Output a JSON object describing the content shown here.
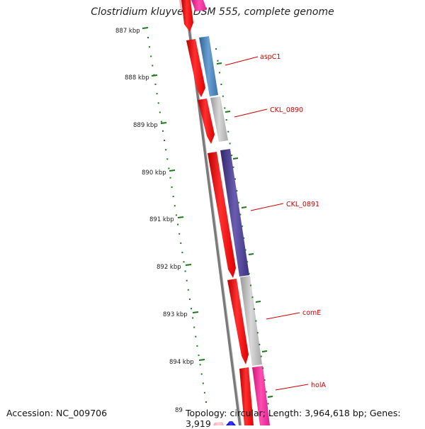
{
  "title": "Clostridium kluyveri DSM 555, complete genome",
  "footer": {
    "accession": "Accession: NC_009706",
    "summary": "Topology: circular; Length: 3,964,618 bp; Genes: 3,919"
  },
  "scale_labels": [
    "887 kbp",
    "888 kbp",
    "889 kbp",
    "890 kbp",
    "891 kbp",
    "892 kbp",
    "893 kbp",
    "894 kbp",
    "89"
  ],
  "gene_labels": [
    "aspC1",
    "CKL_0890",
    "CKL_0891",
    "comE",
    "holA"
  ],
  "colors": {
    "cds_forward": "#ff0000",
    "cds_light": "#ffc0c8",
    "cog_pink": "#ff3aa0",
    "cog_steel": "#4a82b8",
    "cog_gray": "#b8b8b8",
    "cog_purple": "#4a3d8a",
    "cog_blue": "#0000ee",
    "backbone": "#777777",
    "ticks": "#1a7a1a",
    "label_red": "#cc0000"
  }
}
